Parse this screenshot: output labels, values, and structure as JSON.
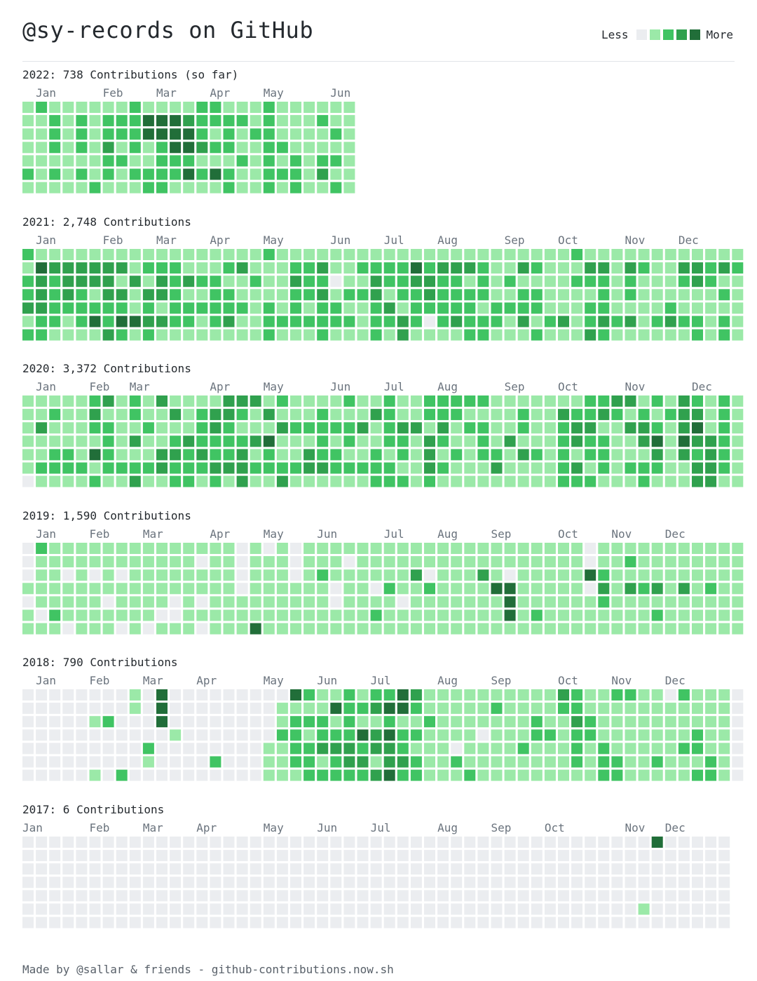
{
  "header": {
    "title": "@sy-records on GitHub",
    "legend_less": "Less",
    "legend_more": "More"
  },
  "colors": [
    "#ebedf0",
    "#9be9a8",
    "#40c463",
    "#30a14e",
    "#216e39"
  ],
  "chart_data": [
    {
      "type": "heatmap",
      "year": 2022,
      "title": "2022: 738 Contributions (so far)",
      "month_labels": [
        {
          "label": "Jan",
          "week": 1
        },
        {
          "label": "Feb",
          "week": 6
        },
        {
          "label": "Mar",
          "week": 10
        },
        {
          "label": "Apr",
          "week": 14
        },
        {
          "label": "May",
          "week": 18
        },
        {
          "label": "Jun",
          "week": 23
        }
      ],
      "weeks": [
        "1111121",
        "2111111",
        "1222121",
        "1111111",
        "1222121",
        "1111112",
        "1223221",
        "1221211",
        "2222121",
        "1441122",
        "1442222",
        "1444221",
        "1344241",
        "2223121",
        "2212141",
        "1222122",
        "1211211",
        "1121111",
        "2222222",
        "1112121",
        "1111222",
        "1111111",
        "1211231",
        "1121212",
        "1111111"
      ]
    },
    {
      "type": "heatmap",
      "year": 2021,
      "title": "2021: 2,748 Contributions",
      "month_labels": [
        {
          "label": "Jan",
          "week": 1
        },
        {
          "label": "Feb",
          "week": 6
        },
        {
          "label": "Mar",
          "week": 10
        },
        {
          "label": "Apr",
          "week": 14
        },
        {
          "label": "May",
          "week": 18
        },
        {
          "label": "Jun",
          "week": 23
        },
        {
          "label": "Jul",
          "week": 27
        },
        {
          "label": "Aug",
          "week": 31
        },
        {
          "label": "Sep",
          "week": 36
        },
        {
          "label": "Oct",
          "week": 40
        },
        {
          "label": "Nov",
          "week": 45
        },
        {
          "label": "Dec",
          "week": 49
        }
      ],
      "weeks": [
        "2122312",
        "1433322",
        "1322221",
        "1333211",
        "1332221",
        "1331241",
        "1333223",
        "1313242",
        "1131141",
        "1213232",
        "1233131",
        "1222221",
        "1131221",
        "1121211",
        "1122221",
        "1212231",
        "1311211",
        "1121111",
        "2111222",
        "1111121",
        "1232221",
        "1222121",
        "1323222",
        "1101221",
        "1112121",
        "1212111",
        "1233222",
        "1221321",
        "1222133",
        "1432221",
        "1233201",
        "1322221",
        "1322231",
        "1312222",
        "1222122",
        "1111221",
        "1121211",
        "1312231",
        "1212212",
        "1111121",
        "1111131",
        "2121111",
        "1321223",
        "1322232",
        "1111121",
        "1322131",
        "1211111",
        "1111121",
        "1111231",
        "1321121",
        "1331122",
        "1221111",
        "1312122",
        "1211111"
      ]
    },
    {
      "type": "heatmap",
      "year": 2020,
      "title": "2020: 3,372 Contributions",
      "month_labels": [
        {
          "label": "Jan",
          "week": 1
        },
        {
          "label": "Feb",
          "week": 5
        },
        {
          "label": "Mar",
          "week": 8
        },
        {
          "label": "Apr",
          "week": 14
        },
        {
          "label": "May",
          "week": 18
        },
        {
          "label": "Jun",
          "week": 23
        },
        {
          "label": "Jul",
          "week": 27
        },
        {
          "label": "Aug",
          "week": 31
        },
        {
          "label": "Sep",
          "week": 36
        },
        {
          "label": "Oct",
          "week": 40
        },
        {
          "label": "Nov",
          "week": 45
        },
        {
          "label": "Dec",
          "week": 50
        }
      ],
      "weeks": [
        "1111110",
        "1131121",
        "1211221",
        "1111221",
        "1111121",
        "2321412",
        "3122221",
        "1111121",
        "2213123",
        "1121121",
        "3111331",
        "1312322",
        "1113222",
        "1222321",
        "1332232",
        "3322231",
        "3212333",
        "3113121",
        "1314221",
        "2131123",
        "1121121",
        "1121331",
        "1222231",
        "1121221",
        "2122121",
        "1131121",
        "1311222",
        "2222122",
        "1132212",
        "1131111",
        "2213332",
        "2232121",
        "2211211",
        "2121111",
        "2122211",
        "1111231",
        "1113111",
        "1221311",
        "1111211",
        "1111111",
        "1322222",
        "1233132",
        "2232212",
        "2312221",
        "3211111",
        "3131121",
        "1233122",
        "2124321",
        "1211111",
        "3334311",
        "2343233",
        "1113333",
        "2222221",
        "1111111"
      ]
    },
    {
      "type": "heatmap",
      "year": 2019,
      "title": "2019: 1,590 Contributions",
      "month_labels": [
        {
          "label": "Jan",
          "week": 1
        },
        {
          "label": "Feb",
          "week": 5
        },
        {
          "label": "Mar",
          "week": 9
        },
        {
          "label": "Apr",
          "week": 14
        },
        {
          "label": "May",
          "week": 18
        },
        {
          "label": "Jun",
          "week": 22
        },
        {
          "label": "Jul",
          "week": 27
        },
        {
          "label": "Aug",
          "week": 31
        },
        {
          "label": "Sep",
          "week": 35
        },
        {
          "label": "Oct",
          "week": 40
        },
        {
          "label": "Nov",
          "week": 44
        },
        {
          "label": "Dec",
          "week": 48
        }
      ],
      "weeks": [
        "0001011",
        "2111101",
        "1111121",
        "1101110",
        "1111111",
        "1101111",
        "1111011",
        "1101110",
        "1111111",
        "1111110",
        "1111101",
        "1111001",
        "1111111",
        "1011010",
        "1111111",
        "1111111",
        "0000111",
        "1111114",
        "0111111",
        "1111111",
        "0001111",
        "1111111",
        "1121111",
        "1110011",
        "1011111",
        "1111111",
        "1110121",
        "1112111",
        "1111011",
        "1131111",
        "1102111",
        "1111111",
        "1111111",
        "1111111",
        "1131111",
        "1114111",
        "1104441",
        "1111111",
        "1111121",
        "1111111",
        "1111111",
        "1111111",
        "0040111",
        "1123211",
        "1111111",
        "1213111",
        "1112111",
        "1113121",
        "1111111",
        "1113111",
        "1111111",
        "1112111",
        "1111111",
        "1111111"
      ]
    },
    {
      "type": "heatmap",
      "year": 2018,
      "title": "2018: 790 Contributions",
      "month_labels": [
        {
          "label": "Jan",
          "week": 1
        },
        {
          "label": "Feb",
          "week": 5
        },
        {
          "label": "Mar",
          "week": 9
        },
        {
          "label": "Apr",
          "week": 13
        },
        {
          "label": "May",
          "week": 18
        },
        {
          "label": "Jun",
          "week": 22
        },
        {
          "label": "Jul",
          "week": 26
        },
        {
          "label": "Aug",
          "week": 31
        },
        {
          "label": "Sep",
          "week": 35
        },
        {
          "label": "Oct",
          "week": 40
        },
        {
          "label": "Nov",
          "week": 44
        },
        {
          "label": "Dec",
          "week": 48
        }
      ],
      "weeks": [
        "0000000",
        "0000000",
        "0000000",
        "0000000",
        "0000000",
        "0010001",
        "0020000",
        "0000002",
        "1100000",
        "0000210",
        "4440000",
        "0001000",
        "0000000",
        "0000000",
        "0000020",
        "0000000",
        "0000000",
        "0000000",
        "0000111",
        "0112111",
        "4122221",
        "2121222",
        "1122312",
        "1412322",
        "2222332",
        "1214232",
        "2313313",
        "2424334",
        "4412232",
        "3212122",
        "1121111",
        "1111111",
        "1111021",
        "1111112",
        "1110111",
        "1211111",
        "1111111",
        "1111211",
        "1122111",
        "1112111",
        "3211111",
        "2232221",
        "1122111",
        "1111222",
        "2111122",
        "2111111",
        "1111111",
        "1111121",
        "0111111",
        "2111211",
        "1112212",
        "1111122",
        "1111111",
        "0000000"
      ]
    },
    {
      "type": "heatmap",
      "year": 2017,
      "title": "2017: 6 Contributions",
      "month_labels": [
        {
          "label": "Jan",
          "week": 0
        },
        {
          "label": "Feb",
          "week": 5
        },
        {
          "label": "Mar",
          "week": 9
        },
        {
          "label": "Apr",
          "week": 13
        },
        {
          "label": "May",
          "week": 18
        },
        {
          "label": "Jun",
          "week": 22
        },
        {
          "label": "Jul",
          "week": 26
        },
        {
          "label": "Aug",
          "week": 31
        },
        {
          "label": "Sep",
          "week": 35
        },
        {
          "label": "Oct",
          "week": 39
        },
        {
          "label": "Nov",
          "week": 45
        },
        {
          "label": "Dec",
          "week": 48
        }
      ],
      "weeks": [
        "0000000",
        "0000000",
        "0000000",
        "0000000",
        "0000000",
        "0000000",
        "0000000",
        "0000000",
        "0000000",
        "0000000",
        "0000000",
        "0000000",
        "0000000",
        "0000000",
        "0000000",
        "0000000",
        "0000000",
        "0000000",
        "0000000",
        "0000000",
        "0000000",
        "0000000",
        "0000000",
        "0000000",
        "0000000",
        "0000000",
        "0000000",
        "0000000",
        "0000000",
        "0000000",
        "0000000",
        "0000000",
        "0000000",
        "0000000",
        "0000000",
        "0000000",
        "0000000",
        "0000000",
        "0000000",
        "0000000",
        "0000000",
        "0000000",
        "0000000",
        "0000000",
        "0000000",
        "0000000",
        "0000010",
        "4000000",
        "0000000",
        "0000000",
        "0000000",
        "0000000",
        "0000000"
      ]
    }
  ],
  "footer": {
    "text": "Made by @sallar & friends - github-contributions.now.sh"
  }
}
